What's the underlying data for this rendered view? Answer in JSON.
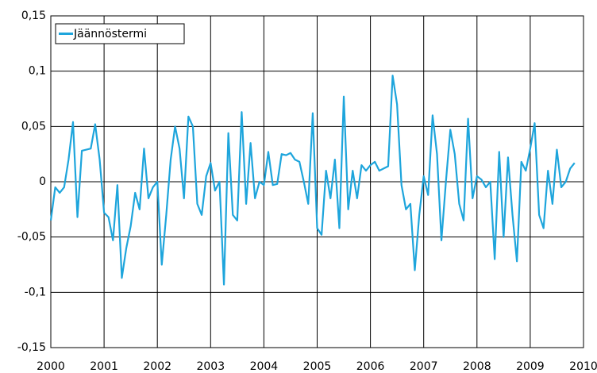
{
  "chart_data": {
    "type": "line",
    "x": [
      2000,
      2000.083,
      2000.167,
      2000.25,
      2000.333,
      2000.417,
      2000.5,
      2000.583,
      2000.667,
      2000.75,
      2000.833,
      2000.917,
      2001,
      2001.083,
      2001.167,
      2001.25,
      2001.333,
      2001.417,
      2001.5,
      2001.583,
      2001.667,
      2001.75,
      2001.833,
      2001.917,
      2002,
      2002.083,
      2002.167,
      2002.25,
      2002.333,
      2002.417,
      2002.5,
      2002.583,
      2002.667,
      2002.75,
      2002.833,
      2002.917,
      2003,
      2003.083,
      2003.167,
      2003.25,
      2003.333,
      2003.417,
      2003.5,
      2003.583,
      2003.667,
      2003.75,
      2003.833,
      2003.917,
      2004,
      2004.083,
      2004.167,
      2004.25,
      2004.333,
      2004.417,
      2004.5,
      2004.583,
      2004.667,
      2004.75,
      2004.833,
      2004.917,
      2005,
      2005.083,
      2005.167,
      2005.25,
      2005.333,
      2005.417,
      2005.5,
      2005.583,
      2005.667,
      2005.75,
      2005.833,
      2005.917,
      2006,
      2006.083,
      2006.167,
      2006.25,
      2006.333,
      2006.417,
      2006.5,
      2006.583,
      2006.667,
      2006.75,
      2006.833,
      2006.917,
      2007,
      2007.083,
      2007.167,
      2007.25,
      2007.333,
      2007.417,
      2007.5,
      2007.583,
      2007.667,
      2007.75,
      2007.833,
      2007.917,
      2008,
      2008.083,
      2008.167,
      2008.25,
      2008.333,
      2008.417,
      2008.5,
      2008.583,
      2008.667,
      2008.75,
      2008.833,
      2008.917,
      2009,
      2009.083,
      2009.167,
      2009.25,
      2009.333,
      2009.417,
      2009.5,
      2009.583,
      2009.667,
      2009.75,
      2009.833
    ],
    "series": [
      {
        "name": "Jäännöstermi",
        "color": "#1ea5dc",
        "values": [
          -0.035,
          -0.005,
          -0.01,
          -0.005,
          0.02,
          0.054,
          -0.032,
          0.028,
          0.029,
          0.03,
          0.052,
          0.02,
          -0.028,
          -0.032,
          -0.053,
          -0.003,
          -0.087,
          -0.06,
          -0.04,
          -0.01,
          -0.025,
          0.03,
          -0.015,
          -0.005,
          0.0,
          -0.075,
          -0.03,
          0.02,
          0.05,
          0.03,
          -0.015,
          0.059,
          0.05,
          -0.02,
          -0.03,
          0.005,
          0.017,
          -0.008,
          0.0,
          -0.093,
          0.044,
          -0.03,
          -0.035,
          0.063,
          -0.02,
          0.035,
          -0.015,
          0.0,
          -0.003,
          0.027,
          -0.003,
          -0.002,
          0.025,
          0.024,
          0.026,
          0.02,
          0.018,
          0.0,
          -0.02,
          0.062,
          -0.042,
          -0.048,
          0.01,
          -0.015,
          0.02,
          -0.042,
          0.077,
          -0.025,
          0.01,
          -0.015,
          0.015,
          0.01,
          0.015,
          0.018,
          0.01,
          0.012,
          0.014,
          0.096,
          0.07,
          -0.003,
          -0.025,
          -0.02,
          -0.08,
          -0.03,
          0.005,
          -0.012,
          0.06,
          0.025,
          -0.053,
          0.0,
          0.047,
          0.025,
          -0.02,
          -0.035,
          0.057,
          -0.015,
          0.005,
          0.002,
          -0.005,
          0.0,
          -0.07,
          0.027,
          -0.05,
          0.022,
          -0.03,
          -0.072,
          0.018,
          0.01,
          0.03,
          0.053,
          -0.03,
          -0.042,
          0.01,
          -0.02,
          0.029,
          -0.005,
          0.0,
          0.012,
          0.017
        ]
      }
    ],
    "xlim": [
      2000,
      2010
    ],
    "xticks": [
      2000,
      2001,
      2002,
      2003,
      2004,
      2005,
      2006,
      2007,
      2008,
      2009,
      2010
    ],
    "ylim": [
      -0.15,
      0.15
    ],
    "yticks": [
      {
        "value": -0.15,
        "label": "-0,15"
      },
      {
        "value": -0.1,
        "label": "-0,1"
      },
      {
        "value": -0.05,
        "label": "-0,05"
      },
      0,
      {
        "value": 0.05,
        "label": "0,05"
      },
      {
        "value": 0.1,
        "label": "0,1"
      },
      {
        "value": 0.15,
        "label": "0,15"
      }
    ],
    "grid": true,
    "legend": "top-left"
  }
}
